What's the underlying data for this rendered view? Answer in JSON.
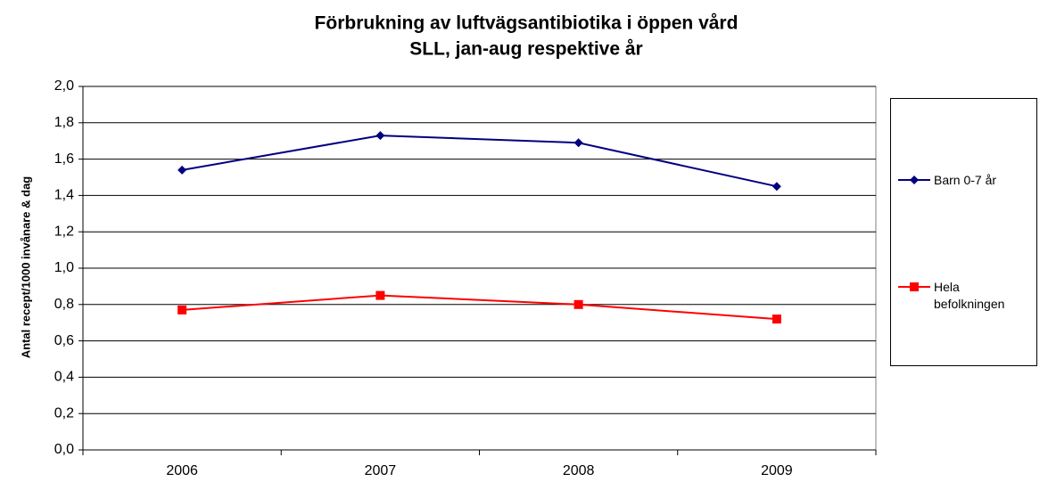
{
  "chart_data": {
    "type": "line",
    "title": "Förbrukning av luftvägsantibiotika i öppen vård",
    "subtitle": "SLL, jan-aug respektive år",
    "y_label": "Antal recept/1000 invånare & dag",
    "categories": [
      "2006",
      "2007",
      "2008",
      "2009"
    ],
    "series": [
      {
        "name": "Barn 0-7 år",
        "color": "#000080",
        "marker": "diamond",
        "values": [
          1.54,
          1.73,
          1.69,
          1.45
        ]
      },
      {
        "name": "Hela befolkningen",
        "color": "#ff0000",
        "marker": "square",
        "values": [
          0.77,
          0.85,
          0.8,
          0.72
        ]
      }
    ],
    "ylim": [
      0,
      2
    ],
    "yticks": [
      {
        "value": 0,
        "label": "0,0"
      },
      {
        "value": 0.2,
        "label": "0,2"
      },
      {
        "value": 0.4,
        "label": "0,4"
      },
      {
        "value": 0.6,
        "label": "0,6"
      },
      {
        "value": 0.8,
        "label": "0,8"
      },
      {
        "value": 1,
        "label": "1,0"
      },
      {
        "value": 1.2,
        "label": "1,2"
      },
      {
        "value": 1.4,
        "label": "1,4"
      },
      {
        "value": 1.6,
        "label": "1,6"
      },
      {
        "value": 1.8,
        "label": "1,8"
      },
      {
        "value": 2,
        "label": "2,0"
      }
    ],
    "grid": true,
    "legend": "right"
  }
}
